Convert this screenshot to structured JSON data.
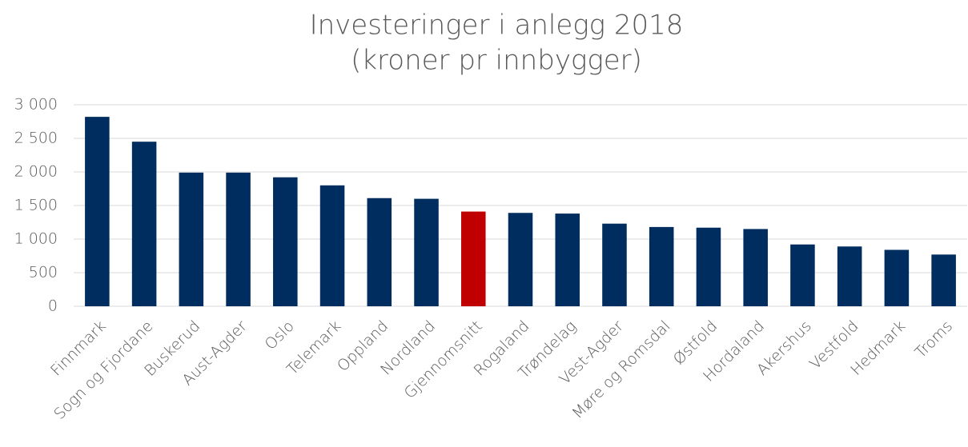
{
  "chart_data": {
    "type": "bar",
    "title": "Investeringer i anlegg 2018",
    "subtitle": "(kroner pr innbygger)",
    "categories": [
      "Finnmark",
      "Sogn og Fjordane",
      "Buskerud",
      "Aust-Agder",
      "Oslo",
      "Telemark",
      "Oppland",
      "Nordland",
      "Gjennomsnitt",
      "Rogaland",
      "Trøndelag",
      "Vest-Agder",
      "Møre og Romsdal",
      "Østfold",
      "Hordaland",
      "Akershus",
      "Vestfold",
      "Hedmark",
      "Troms"
    ],
    "values": [
      2820,
      2450,
      1990,
      1990,
      1920,
      1800,
      1610,
      1600,
      1410,
      1390,
      1380,
      1230,
      1180,
      1170,
      1150,
      920,
      890,
      840,
      770
    ],
    "colors": [
      "#002d5f",
      "#002d5f",
      "#002d5f",
      "#002d5f",
      "#002d5f",
      "#002d5f",
      "#002d5f",
      "#002d5f",
      "#c00000",
      "#002d5f",
      "#002d5f",
      "#002d5f",
      "#002d5f",
      "#002d5f",
      "#002d5f",
      "#002d5f",
      "#002d5f",
      "#002d5f",
      "#002d5f"
    ],
    "ylim": [
      0,
      3000
    ],
    "yticks": [
      0,
      500,
      {
        "value": 1000,
        "label": "1 000"
      },
      {
        "value": 1500,
        "label": "1 500"
      },
      {
        "value": 2000,
        "label": "2 000"
      },
      {
        "value": 2500,
        "label": "2 500"
      },
      {
        "value": 3000,
        "label": "3 000"
      }
    ],
    "grid": true
  }
}
